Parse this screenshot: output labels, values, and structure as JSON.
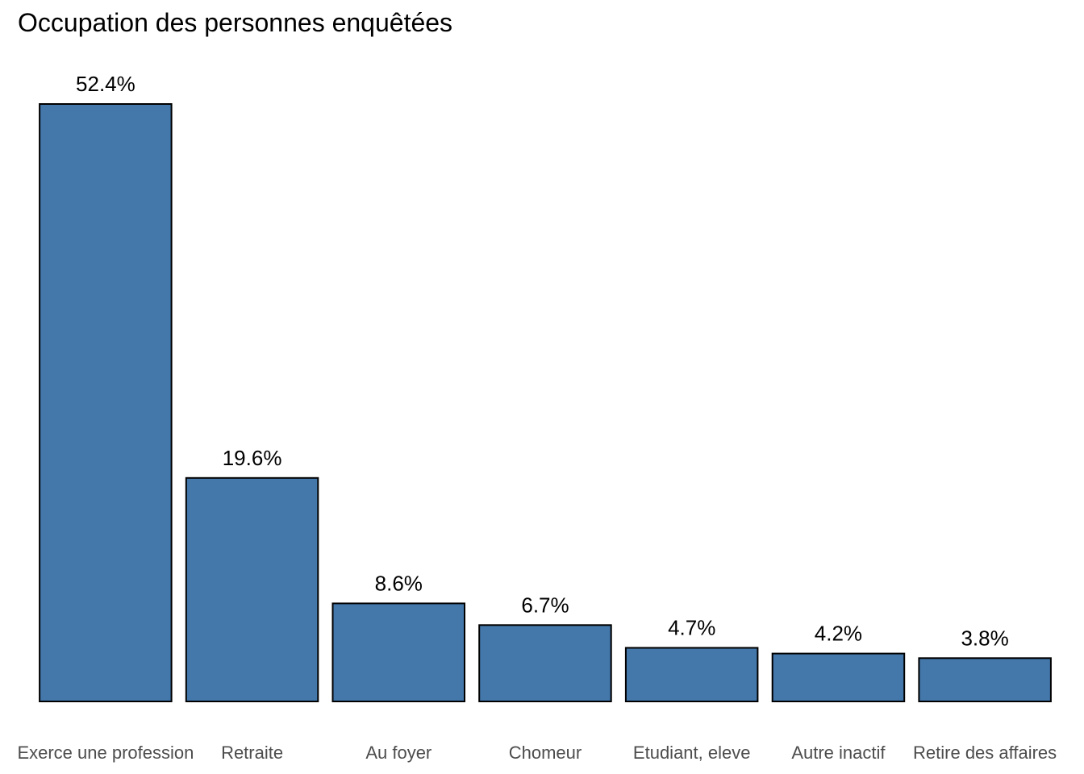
{
  "chart_data": {
    "type": "bar",
    "title": "Occupation des personnes enquêtées",
    "xlabel": "",
    "ylabel": "",
    "ylim": [
      0,
      52.4
    ],
    "grid": false,
    "categories": [
      "Exerce une profession",
      "Retraite",
      "Au foyer",
      "Chomeur",
      "Etudiant, eleve",
      "Autre inactif",
      "Retire des affaires"
    ],
    "values": [
      52.4,
      19.6,
      8.6,
      6.7,
      4.7,
      4.2,
      3.8
    ],
    "data_labels": [
      "52.4%",
      "19.6%",
      "8.6%",
      "6.7%",
      "4.7%",
      "4.2%",
      "3.8%"
    ],
    "bar_color": "#4477AA",
    "bar_outline_color": "#000000"
  }
}
